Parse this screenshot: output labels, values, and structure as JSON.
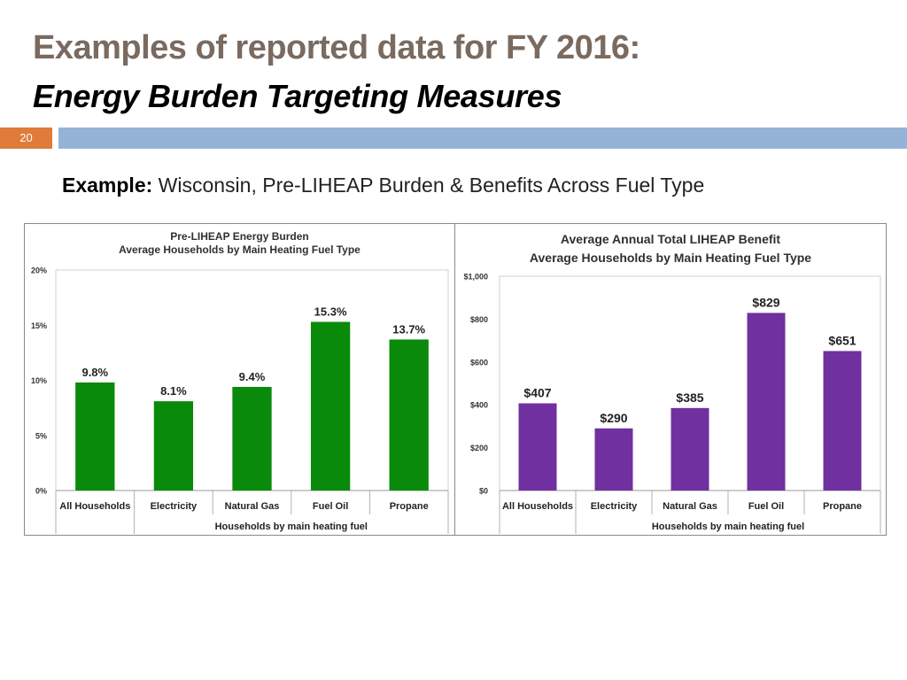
{
  "slide": {
    "title_line1": "Examples of reported data for FY 2016:",
    "title_line2": "Energy Burden Targeting Measures",
    "page_number": "20",
    "example_label": "Example:",
    "example_text": " Wisconsin, Pre-LIHEAP Burden & Benefits Across Fuel Type",
    "colors": {
      "title": "#7a6a5f",
      "page_badge": "#e07b39",
      "rule_bar": "#95b3d7"
    }
  },
  "chart_data": [
    {
      "type": "bar",
      "title_line1": "Pre-LIHEAP Energy Burden",
      "title_line2": "Average Households by Main Heating Fuel Type",
      "categories": [
        "All Households",
        "Electricity",
        "Natural Gas",
        "Fuel Oil",
        "Propane"
      ],
      "values": [
        9.8,
        8.1,
        9.4,
        15.3,
        13.7
      ],
      "data_labels": [
        "9.8%",
        "8.1%",
        "9.4%",
        "15.3%",
        "13.7%"
      ],
      "ylim": [
        0,
        20
      ],
      "yticks": [
        0,
        5,
        10,
        15,
        20
      ],
      "ytick_labels": [
        "0%",
        "5%",
        "10%",
        "15%",
        "20%"
      ],
      "xlabel": "Households by main heating fuel",
      "ylabel": "",
      "grid": false,
      "color": "#0a8a0a"
    },
    {
      "type": "bar",
      "title_line1": "Average Annual Total LIHEAP Benefit",
      "title_line2": "Average Households by Main Heating Fuel Type",
      "categories": [
        "All Households",
        "Electricity",
        "Natural Gas",
        "Fuel Oil",
        "Propane"
      ],
      "values": [
        407,
        290,
        385,
        829,
        651
      ],
      "data_labels": [
        "$407",
        "$290",
        "$385",
        "$829",
        "$651"
      ],
      "ylim": [
        0,
        1000
      ],
      "yticks": [
        0,
        200,
        400,
        600,
        800,
        1000
      ],
      "ytick_labels": [
        "$0",
        "$200",
        "$400",
        "$600",
        "$800",
        "$1,000"
      ],
      "xlabel": "Households by main heating fuel",
      "ylabel": "",
      "grid": false,
      "color": "#7030a0"
    }
  ]
}
